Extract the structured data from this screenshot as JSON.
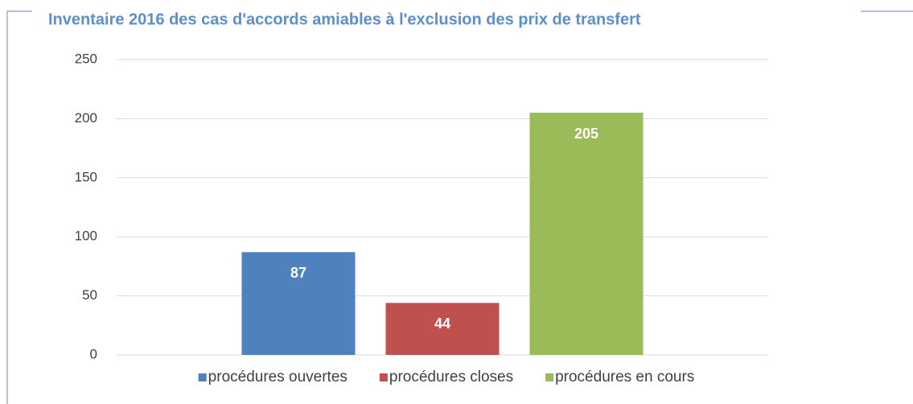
{
  "chart_data": {
    "type": "bar",
    "title": "Inventaire 2016 des cas d'accords amiables à l'exclusion des prix de transfert",
    "categories": [
      null
    ],
    "series": [
      {
        "name": "procédures ouvertes",
        "color": "#4f81bd",
        "values": [
          87
        ]
      },
      {
        "name": "procédures closes",
        "color": "#c0504d",
        "values": [
          44
        ]
      },
      {
        "name": "procédures en cours",
        "color": "#9bbb59",
        "values": [
          205
        ]
      }
    ],
    "ylim": [
      0,
      250
    ],
    "yticks": [
      0,
      50,
      100,
      150,
      200,
      250
    ],
    "grid": true,
    "legend": "bottom"
  }
}
